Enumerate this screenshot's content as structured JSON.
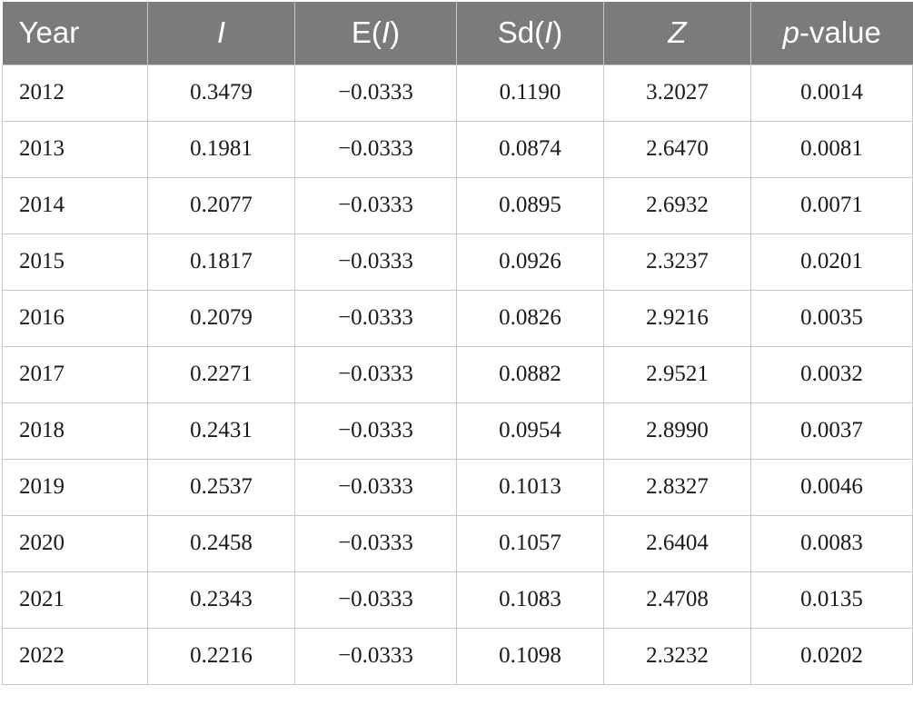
{
  "table": {
    "headers": {
      "year": "Year",
      "i": "I",
      "ei_prefix": "E(",
      "ei_var": "I",
      "ei_suffix": ")",
      "sdi_prefix": "Sd(",
      "sdi_var": "I",
      "sdi_suffix": ")",
      "z": "Z",
      "p_var": "p",
      "p_suffix": "-value"
    },
    "rows": [
      [
        "2012",
        "0.3479",
        "−0.0333",
        "0.1190",
        "3.2027",
        "0.0014"
      ],
      [
        "2013",
        "0.1981",
        "−0.0333",
        "0.0874",
        "2.6470",
        "0.0081"
      ],
      [
        "2014",
        "0.2077",
        "−0.0333",
        "0.0895",
        "2.6932",
        "0.0071"
      ],
      [
        "2015",
        "0.1817",
        "−0.0333",
        "0.0926",
        "2.3237",
        "0.0201"
      ],
      [
        "2016",
        "0.2079",
        "−0.0333",
        "0.0826",
        "2.9216",
        "0.0035"
      ],
      [
        "2017",
        "0.2271",
        "−0.0333",
        "0.0882",
        "2.9521",
        "0.0032"
      ],
      [
        "2018",
        "0.2431",
        "−0.0333",
        "0.0954",
        "2.8990",
        "0.0037"
      ],
      [
        "2019",
        "0.2537",
        "−0.0333",
        "0.1013",
        "2.8327",
        "0.0046"
      ],
      [
        "2020",
        "0.2458",
        "−0.0333",
        "0.1057",
        "2.6404",
        "0.0083"
      ],
      [
        "2021",
        "0.2343",
        "−0.0333",
        "0.1083",
        "2.4708",
        "0.0135"
      ],
      [
        "2022",
        "0.2216",
        "−0.0333",
        "0.1098",
        "2.3232",
        "0.0202"
      ]
    ]
  },
  "colors": {
    "header_background": "#7b7b7b",
    "header_text": "#ffffff",
    "grid_line": "#c6c6c6",
    "body_text": "#1a1a1a"
  }
}
